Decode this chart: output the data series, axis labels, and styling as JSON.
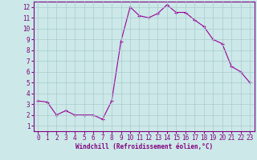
{
  "x": [
    0,
    1,
    2,
    3,
    4,
    5,
    6,
    7,
    8,
    9,
    10,
    11,
    12,
    13,
    14,
    15,
    16,
    17,
    18,
    19,
    20,
    21,
    22,
    23
  ],
  "y": [
    3.3,
    3.2,
    2.0,
    2.4,
    2.0,
    2.0,
    2.0,
    1.6,
    3.3,
    8.8,
    12.0,
    11.2,
    11.0,
    11.4,
    12.2,
    11.5,
    11.5,
    10.8,
    10.2,
    9.0,
    8.6,
    6.5,
    6.0,
    5.0
  ],
  "line_color": "#990099",
  "marker": "+",
  "marker_size": 3,
  "marker_lw": 0.8,
  "bg_color": "#cce8e8",
  "grid_color": "#aacccc",
  "xlabel": "Windchill (Refroidissement éolien,°C)",
  "xlabel_fontsize": 5.5,
  "tick_fontsize": 5.5,
  "ylim": [
    0.5,
    12.5
  ],
  "xlim": [
    -0.5,
    23.5
  ],
  "yticks": [
    1,
    2,
    3,
    4,
    5,
    6,
    7,
    8,
    9,
    10,
    11,
    12
  ],
  "xticks": [
    0,
    1,
    2,
    3,
    4,
    5,
    6,
    7,
    8,
    9,
    10,
    11,
    12,
    13,
    14,
    15,
    16,
    17,
    18,
    19,
    20,
    21,
    22,
    23
  ],
  "spine_color": "#800080",
  "axis_bg_color": "#cce8e8"
}
